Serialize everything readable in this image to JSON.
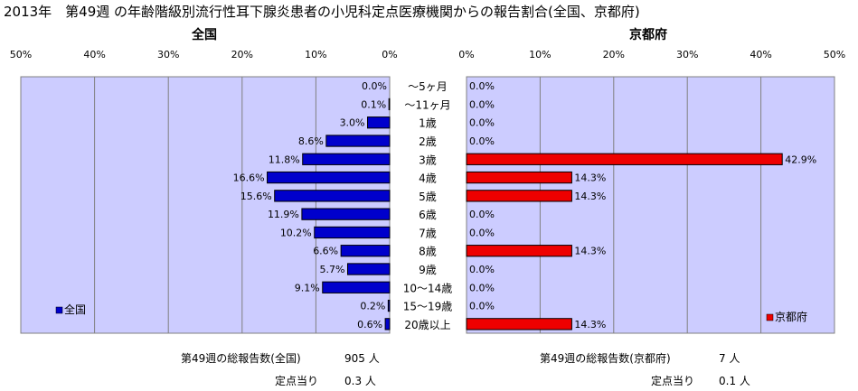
{
  "title": "2013年　第49週 の年齢階級別流行性耳下腺炎患者の小児科定点医療機関からの報告割合(全国、京都府)",
  "chart_data": [
    {
      "type": "bar",
      "orientation": "horizontal",
      "panel_title": "全国",
      "direction": "right-to-left",
      "categories": [
        "～5ヶ月",
        "～11ヶ月",
        "1歳",
        "2歳",
        "3歳",
        "4歳",
        "5歳",
        "6歳",
        "7歳",
        "8歳",
        "9歳",
        "10～14歳",
        "15～19歳",
        "20歳以上"
      ],
      "series": [
        {
          "name": "全国",
          "color": "#0000cc",
          "values": [
            0.0,
            0.1,
            3.0,
            8.6,
            11.8,
            16.6,
            15.6,
            11.9,
            10.2,
            6.6,
            5.7,
            9.1,
            0.2,
            0.6
          ]
        }
      ],
      "value_labels": [
        "0.0%",
        "0.1%",
        "3.0%",
        "8.6%",
        "11.8%",
        "16.6%",
        "15.6%",
        "11.9%",
        "10.2%",
        "6.6%",
        "5.7%",
        "9.1%",
        "0.2%",
        "0.6%"
      ],
      "xlim": [
        0,
        50
      ],
      "ticks": [
        "50%",
        "40%",
        "30%",
        "20%",
        "10%",
        "0%"
      ],
      "grid": true,
      "legend": "bottom-left",
      "plot_background": "#ccccff"
    },
    {
      "type": "bar",
      "orientation": "horizontal",
      "panel_title": "京都府",
      "direction": "left-to-right",
      "categories": [
        "～5ヶ月",
        "～11ヶ月",
        "1歳",
        "2歳",
        "3歳",
        "4歳",
        "5歳",
        "6歳",
        "7歳",
        "8歳",
        "9歳",
        "10～14歳",
        "15～19歳",
        "20歳以上"
      ],
      "series": [
        {
          "name": "京都府",
          "color": "#ee0000",
          "values": [
            0.0,
            0.0,
            0.0,
            0.0,
            42.9,
            14.3,
            14.3,
            0.0,
            0.0,
            14.3,
            0.0,
            0.0,
            0.0,
            14.3
          ]
        }
      ],
      "value_labels": [
        "0.0%",
        "0.0%",
        "0.0%",
        "0.0%",
        "42.9%",
        "14.3%",
        "14.3%",
        "0.0%",
        "0.0%",
        "14.3%",
        "0.0%",
        "0.0%",
        "0.0%",
        "14.3%"
      ],
      "xlim": [
        0,
        50
      ],
      "ticks": [
        "0%",
        "10%",
        "20%",
        "30%",
        "40%",
        "50%"
      ],
      "grid": true,
      "legend": "bottom-right",
      "plot_background": "#ccccff"
    }
  ],
  "footer": {
    "national_total_label": "第49週の総報告数(全国)",
    "national_total_value": "905 人",
    "national_per_label": "定点当り",
    "national_per_value": "0.3 人",
    "kyoto_total_label": "第49週の総報告数(京都府)",
    "kyoto_total_value": "7 人",
    "kyoto_per_label": "定点当り",
    "kyoto_per_value": "0.1 人"
  }
}
